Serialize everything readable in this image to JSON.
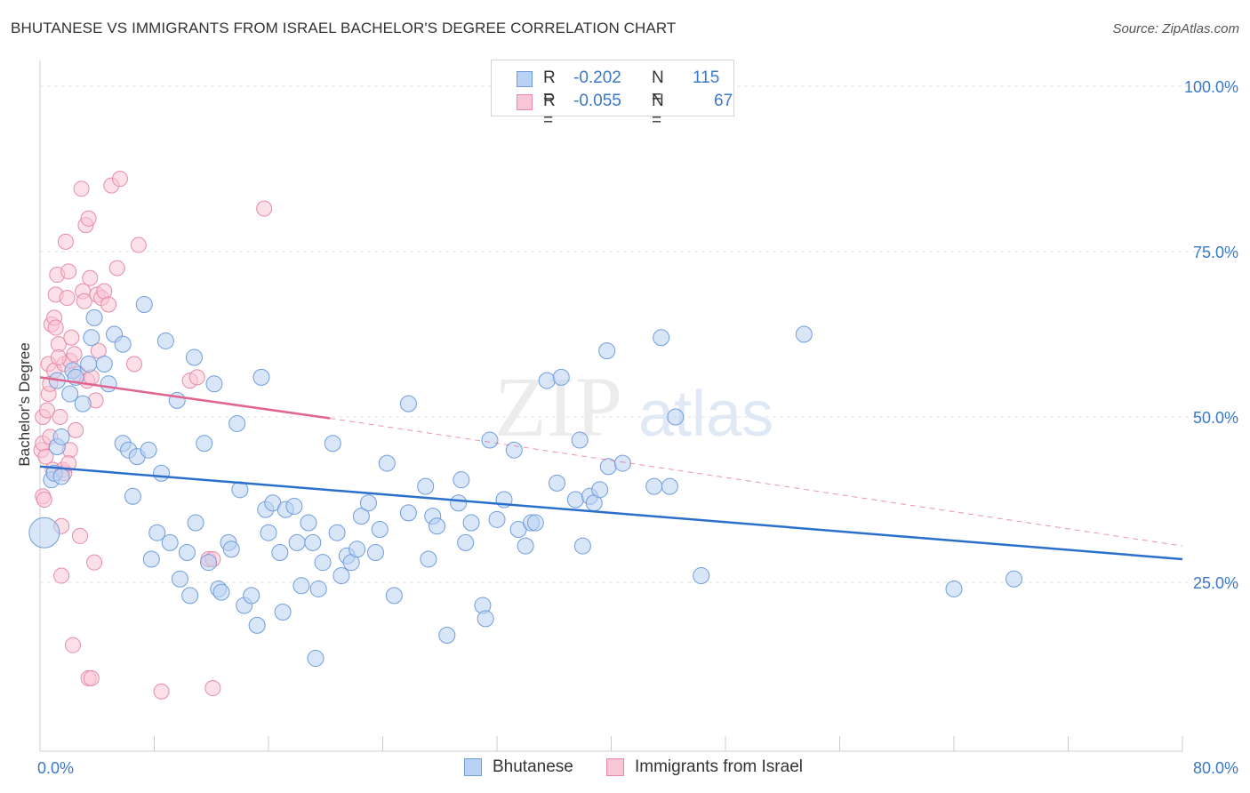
{
  "title": "BHUTANESE VS IMMIGRANTS FROM ISRAEL BACHELOR'S DEGREE CORRELATION CHART",
  "source": "Source: ZipAtlas.com",
  "watermark": {
    "zip": "ZIP",
    "atlas": "atlas"
  },
  "legend": [
    {
      "r_label": "R =",
      "r_value": "-0.202",
      "n_label": "N =",
      "n_value": "115",
      "color": "#a9c8f0"
    },
    {
      "r_label": "R =",
      "r_value": "-0.055",
      "n_label": "N =",
      "n_value": "67",
      "color": "#f7b8cc"
    }
  ],
  "bottom_legend": [
    "Bhutanese",
    "Immigrants from Israel"
  ],
  "colors": {
    "blue_fill": "#b9d1f2",
    "blue_stroke": "#6f9ddc",
    "blue_line": "#2a6fcc",
    "pink_fill": "#f9c6d5",
    "pink_stroke": "#e88aa8",
    "pink_line": "#e0658f",
    "axis_label": "#3a78c8"
  },
  "chart_data": {
    "type": "scatter",
    "title": "BHUTANESE VS IMMIGRANTS FROM ISRAEL BACHELOR'S DEGREE CORRELATION CHART",
    "xlabel": "",
    "ylabel": "Bachelor's Degree",
    "xlim": [
      0,
      80
    ],
    "ylim": [
      0,
      105
    ],
    "x_tick_labels": [
      "0.0%",
      "80.0%"
    ],
    "y_tick_labels": [
      "100.0%",
      "75.0%",
      "50.0%",
      "25.0%"
    ],
    "y_ticks": [
      100,
      75,
      50,
      25
    ],
    "series": [
      {
        "name": "Bhutanese",
        "r": -0.202,
        "n": 115,
        "trend": {
          "x": [
            0,
            80
          ],
          "y": [
            42.5,
            28.5
          ],
          "style": "solid"
        },
        "points": [
          [
            0.3,
            32.5
          ],
          [
            0.8,
            40.5
          ],
          [
            1.0,
            41.5
          ],
          [
            1.2,
            55.5
          ],
          [
            1.2,
            45.5
          ],
          [
            1.5,
            47
          ],
          [
            1.5,
            41
          ],
          [
            2.1,
            53.5
          ],
          [
            2.3,
            57
          ],
          [
            2.5,
            56
          ],
          [
            3.0,
            52
          ],
          [
            3.4,
            58
          ],
          [
            3.6,
            62
          ],
          [
            3.8,
            65
          ],
          [
            4.5,
            58
          ],
          [
            4.8,
            55
          ],
          [
            5.2,
            62.5
          ],
          [
            5.8,
            61
          ],
          [
            5.8,
            46
          ],
          [
            6.2,
            45
          ],
          [
            6.5,
            38
          ],
          [
            6.8,
            44
          ],
          [
            7.3,
            67
          ],
          [
            7.6,
            45
          ],
          [
            7.8,
            28.5
          ],
          [
            8.2,
            32.5
          ],
          [
            8.5,
            41.5
          ],
          [
            8.8,
            61.5
          ],
          [
            9.1,
            31
          ],
          [
            9.6,
            52.5
          ],
          [
            9.8,
            25.5
          ],
          [
            10.3,
            29.5
          ],
          [
            10.5,
            23
          ],
          [
            10.8,
            59
          ],
          [
            10.9,
            34
          ],
          [
            11.5,
            46
          ],
          [
            11.8,
            28
          ],
          [
            12.2,
            55
          ],
          [
            12.5,
            24
          ],
          [
            12.7,
            23.5
          ],
          [
            13.2,
            31
          ],
          [
            13.4,
            30
          ],
          [
            13.8,
            49
          ],
          [
            14.0,
            39
          ],
          [
            14.3,
            21.5
          ],
          [
            14.8,
            23
          ],
          [
            15.2,
            18.5
          ],
          [
            15.5,
            56
          ],
          [
            15.8,
            36
          ],
          [
            16.0,
            32.5
          ],
          [
            16.3,
            37
          ],
          [
            16.8,
            29.5
          ],
          [
            17.0,
            20.5
          ],
          [
            17.2,
            36
          ],
          [
            17.8,
            36.5
          ],
          [
            18.0,
            31
          ],
          [
            18.3,
            24.5
          ],
          [
            18.8,
            34
          ],
          [
            19.1,
            31
          ],
          [
            19.3,
            13.5
          ],
          [
            19.5,
            24
          ],
          [
            19.8,
            28
          ],
          [
            20.5,
            46
          ],
          [
            20.8,
            32.5
          ],
          [
            21.1,
            26
          ],
          [
            21.5,
            29
          ],
          [
            21.8,
            28
          ],
          [
            22.2,
            30
          ],
          [
            22.5,
            35
          ],
          [
            23.0,
            37
          ],
          [
            23.5,
            29.5
          ],
          [
            23.8,
            33
          ],
          [
            24.3,
            43
          ],
          [
            24.8,
            23
          ],
          [
            25.8,
            35.5
          ],
          [
            25.8,
            52
          ],
          [
            27.0,
            39.5
          ],
          [
            27.2,
            28.5
          ],
          [
            27.5,
            35
          ],
          [
            27.8,
            33.5
          ],
          [
            28.5,
            17
          ],
          [
            29.3,
            37
          ],
          [
            29.8,
            31
          ],
          [
            29.5,
            40.5
          ],
          [
            30.2,
            34
          ],
          [
            31.0,
            21.5
          ],
          [
            31.2,
            19.5
          ],
          [
            31.5,
            46.5
          ],
          [
            32.0,
            34.5
          ],
          [
            32.5,
            37.5
          ],
          [
            33.2,
            45
          ],
          [
            33.5,
            33
          ],
          [
            34.0,
            30.5
          ],
          [
            34.4,
            34
          ],
          [
            34.7,
            34
          ],
          [
            35.5,
            55.5
          ],
          [
            36.2,
            40
          ],
          [
            36.5,
            56
          ],
          [
            37.5,
            37.5
          ],
          [
            37.8,
            46.5
          ],
          [
            38.0,
            30.5
          ],
          [
            38.5,
            38
          ],
          [
            38.8,
            37
          ],
          [
            39.2,
            39
          ],
          [
            39.7,
            60
          ],
          [
            39.8,
            42.5
          ],
          [
            40.8,
            43
          ],
          [
            43.0,
            39.5
          ],
          [
            43.5,
            62
          ],
          [
            44.1,
            39.5
          ],
          [
            44.5,
            50
          ],
          [
            46.3,
            26
          ],
          [
            53.5,
            62.5
          ],
          [
            64.0,
            24
          ],
          [
            68.2,
            25.5
          ]
        ]
      },
      {
        "name": "Immigrants from Israel",
        "r": -0.055,
        "n": 67,
        "trend": {
          "x": [
            0,
            20.3
          ],
          "y": [
            56,
            49.8
          ],
          "style": "solid",
          "dash_to_x": 80,
          "dash_to_y": 30.5
        },
        "points": [
          [
            0.1,
            45
          ],
          [
            0.2,
            38
          ],
          [
            0.2,
            50
          ],
          [
            0.2,
            46
          ],
          [
            0.3,
            37.5
          ],
          [
            0.4,
            44
          ],
          [
            0.5,
            51
          ],
          [
            0.6,
            58
          ],
          [
            0.6,
            53.5
          ],
          [
            0.7,
            55
          ],
          [
            0.8,
            64
          ],
          [
            0.9,
            42
          ],
          [
            1.0,
            57
          ],
          [
            1.0,
            65
          ],
          [
            1.1,
            63.5
          ],
          [
            1.1,
            68.5
          ],
          [
            1.2,
            71.5
          ],
          [
            1.3,
            61
          ],
          [
            1.4,
            50
          ],
          [
            1.5,
            26
          ],
          [
            1.5,
            33.5
          ],
          [
            1.6,
            42
          ],
          [
            1.7,
            58
          ],
          [
            1.8,
            76.5
          ],
          [
            1.9,
            68
          ],
          [
            2.0,
            72
          ],
          [
            2.1,
            58.5
          ],
          [
            2.1,
            45
          ],
          [
            2.2,
            62
          ],
          [
            2.3,
            15.5
          ],
          [
            2.4,
            59.5
          ],
          [
            2.5,
            48
          ],
          [
            2.7,
            56.5
          ],
          [
            2.8,
            32
          ],
          [
            2.9,
            84.5
          ],
          [
            3.0,
            69
          ],
          [
            3.1,
            67.5
          ],
          [
            3.2,
            79
          ],
          [
            3.3,
            55.5
          ],
          [
            3.4,
            80
          ],
          [
            3.4,
            10.5
          ],
          [
            3.5,
            71
          ],
          [
            3.6,
            56
          ],
          [
            3.6,
            10.5
          ],
          [
            3.8,
            28
          ],
          [
            3.9,
            52.5
          ],
          [
            4.0,
            68.5
          ],
          [
            4.1,
            60
          ],
          [
            4.3,
            68
          ],
          [
            4.5,
            69
          ],
          [
            4.8,
            67
          ],
          [
            5.0,
            85
          ],
          [
            5.4,
            72.5
          ],
          [
            5.6,
            86
          ],
          [
            6.6,
            58
          ],
          [
            6.9,
            76
          ],
          [
            8.5,
            8.5
          ],
          [
            10.5,
            55.5
          ],
          [
            11.0,
            56
          ],
          [
            11.8,
            28.5
          ],
          [
            12.1,
            28.5
          ],
          [
            12.1,
            9
          ],
          [
            15.7,
            81.5
          ],
          [
            1.7,
            41.5
          ],
          [
            2.0,
            43
          ],
          [
            0.7,
            47
          ],
          [
            1.3,
            59
          ]
        ]
      }
    ]
  }
}
